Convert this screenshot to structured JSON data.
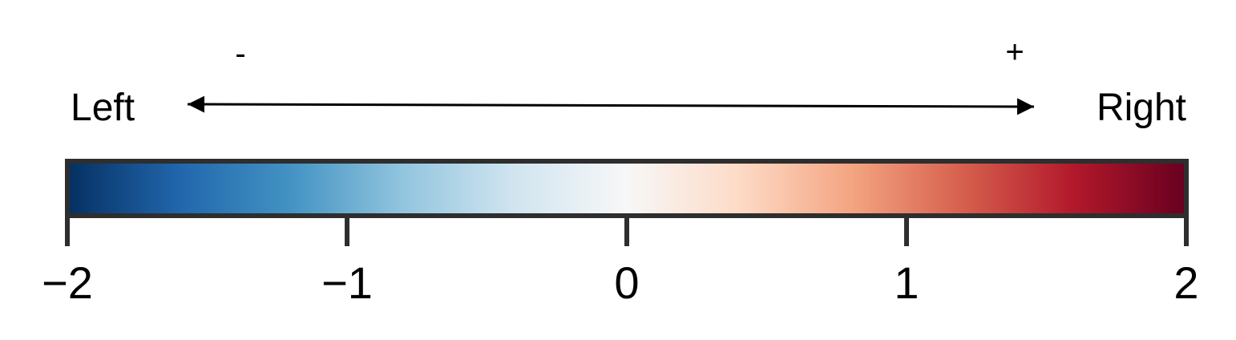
{
  "chart_data": {
    "type": "colorbar",
    "range": [
      -2,
      2
    ],
    "ticks": [
      -2,
      -1,
      0,
      1,
      2
    ],
    "tick_labels": [
      "−2",
      "−1",
      "0",
      "1",
      "2"
    ],
    "colormap": "RdBu_r",
    "color_stops": [
      "#053061",
      "#2166ac",
      "#4393c3",
      "#92c5de",
      "#d1e5f0",
      "#f7f7f7",
      "#fddbc7",
      "#f4a582",
      "#d6604d",
      "#b2182b",
      "#67001f"
    ],
    "direction": {
      "left_label": "Left",
      "right_label": "Right",
      "minus_sign": "-",
      "plus_sign": "+"
    }
  }
}
